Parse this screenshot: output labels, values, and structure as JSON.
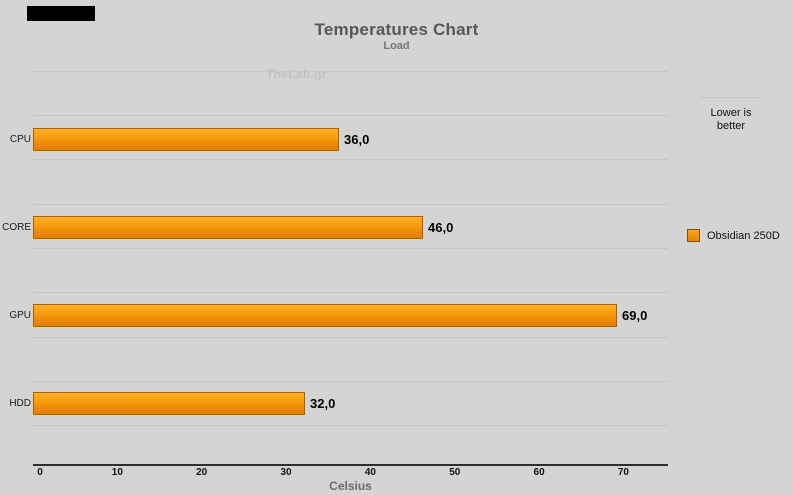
{
  "chart_data": {
    "type": "bar",
    "orientation": "horizontal",
    "title": "Temperatures Chart",
    "subtitle": "Load",
    "watermark": "TheLab.gr",
    "note_lines": [
      "Lower is",
      "better"
    ],
    "categories": [
      "CPU",
      "CORE",
      "GPU",
      "HDD"
    ],
    "values": [
      36.0,
      46.0,
      69.0,
      32.0
    ],
    "value_labels": [
      "36,0",
      "46,0",
      "69,0",
      "32,0"
    ],
    "series": [
      {
        "name": "Obsidian 250D",
        "color": "#F08E04"
      }
    ],
    "xlabel": "Celsius",
    "xticks": [
      0,
      10,
      20,
      30,
      40,
      50,
      60,
      70
    ],
    "xlim": [
      0,
      75.3
    ],
    "grid": "horizontal",
    "legend_position": "right",
    "colors": {
      "background": "#d4d4d4",
      "gridline": "#c6c6c6",
      "axis": "#2e2e2e",
      "bar_gradient_top": "#ffae24",
      "bar_gradient_bottom": "#e57d00",
      "bar_border": "#a56300",
      "title_text": "#575757",
      "subtitle_text": "#767676",
      "watermark_text": "#c2c2c2"
    }
  }
}
